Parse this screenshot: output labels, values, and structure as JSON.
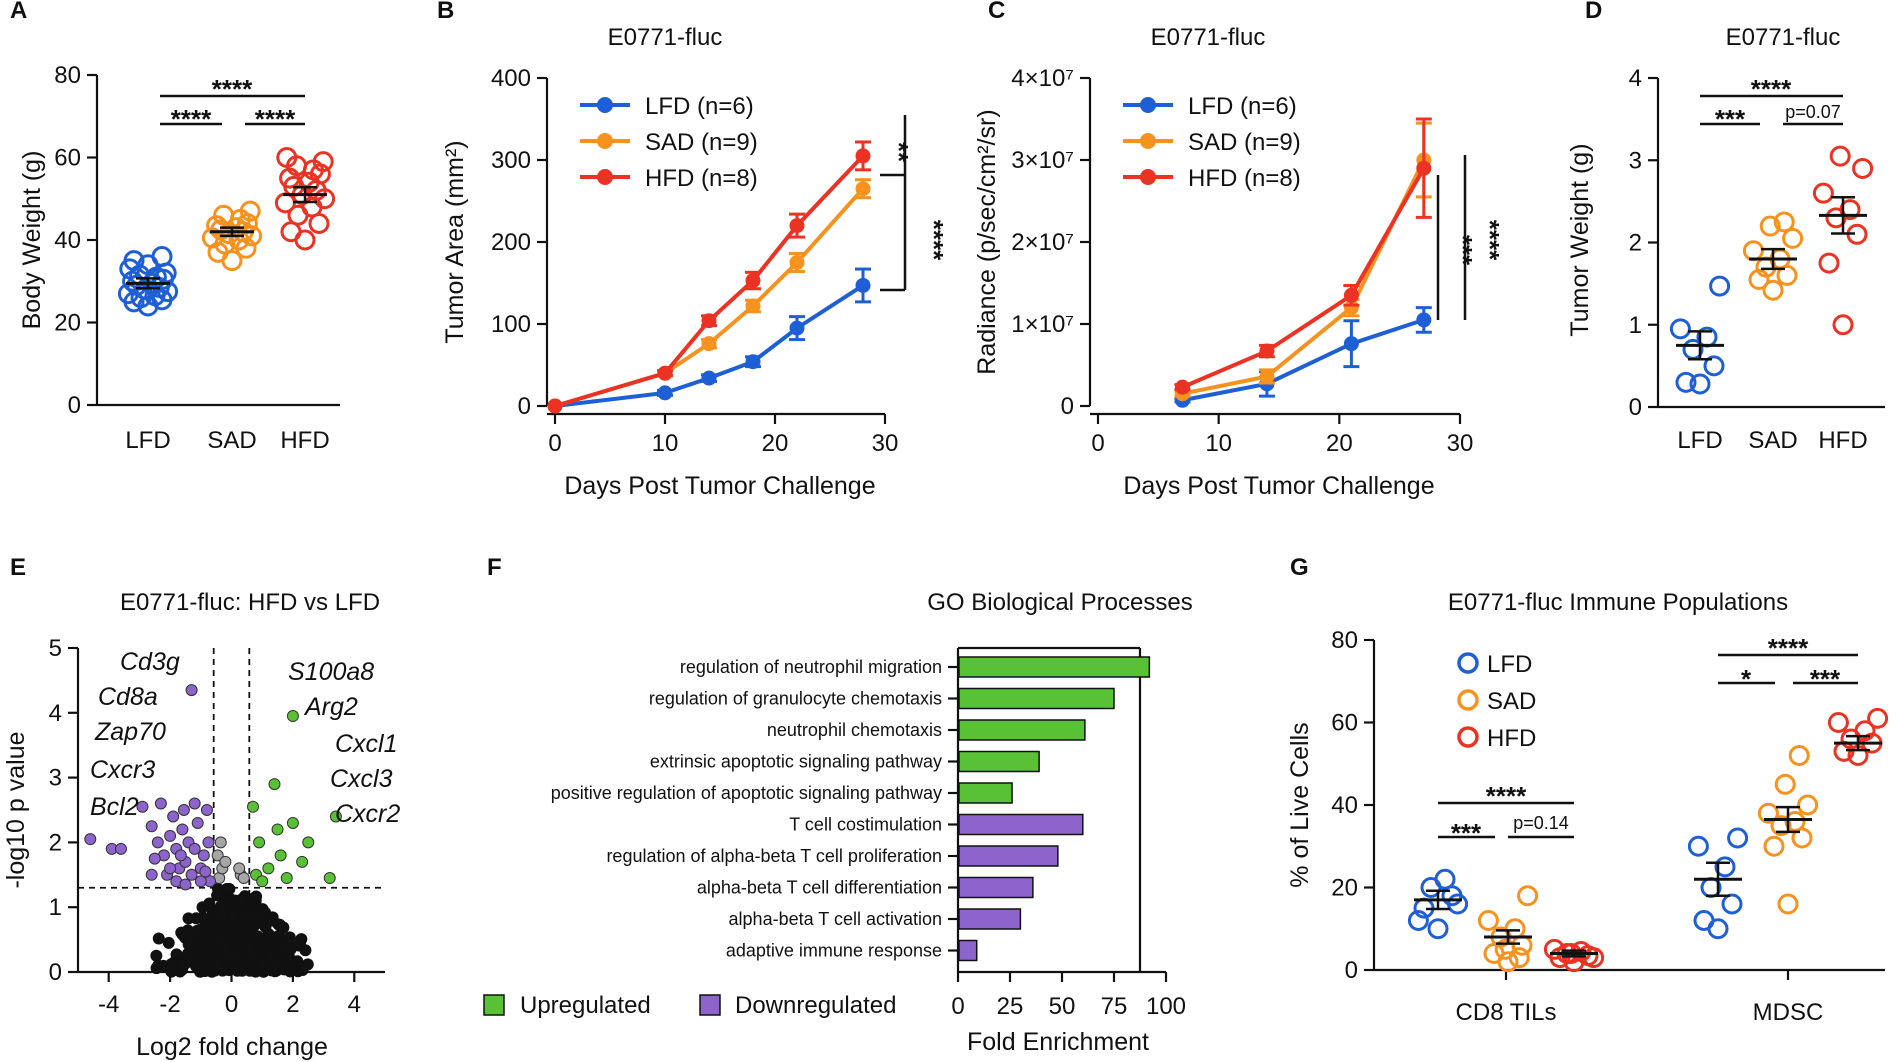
{
  "colors": {
    "LFD": "#1f5fd6",
    "SAD": "#f8921e",
    "HFD": "#ec3323",
    "up": "#58c234",
    "down": "#8d63cc",
    "ns": "#a6a6a6",
    "black": "#111111"
  },
  "chart_data": [
    {
      "panel": "A",
      "type": "scatter",
      "title": "",
      "xlabel": "",
      "ylabel": "Body Weight (g)",
      "categories": [
        "LFD",
        "SAD",
        "HFD"
      ],
      "ylim": [
        0,
        80
      ],
      "yticks": [
        "0",
        "20",
        "40",
        "60",
        "80"
      ],
      "means": [
        29.5,
        42,
        51
      ],
      "sem": [
        1.2,
        1.0,
        1.8
      ],
      "points": [
        [
          24,
          25,
          25.5,
          26,
          26.5,
          27,
          27.5,
          28,
          28.5,
          29,
          29.5,
          30,
          30.5,
          31,
          31.5,
          32,
          33,
          34,
          35,
          36
        ],
        [
          35,
          37,
          38,
          39,
          40,
          40.5,
          41,
          41.5,
          42,
          42.5,
          43,
          43.5,
          44,
          45,
          46,
          47
        ],
        [
          40,
          42,
          44,
          46,
          48,
          49,
          50,
          51,
          52,
          53,
          54,
          55,
          56,
          57,
          58,
          59,
          60
        ]
      ],
      "significance": [
        {
          "from": "LFD",
          "to": "SAD",
          "label": "****"
        },
        {
          "from": "SAD",
          "to": "HFD",
          "label": "****"
        },
        {
          "from": "LFD",
          "to": "HFD",
          "label": "****"
        }
      ]
    },
    {
      "panel": "B",
      "type": "line",
      "title": "E0771-fluc",
      "xlabel": "Days Post Tumor Challenge",
      "ylabel": "Tumor Area (mm²)",
      "xlim": [
        0,
        30
      ],
      "ylim": [
        0,
        400
      ],
      "xticks": [
        "0",
        "10",
        "20",
        "30"
      ],
      "yticks": [
        "0",
        "100",
        "200",
        "300",
        "400"
      ],
      "series": [
        {
          "name": "LFD (n=6)",
          "x": [
            0,
            10,
            14,
            18,
            22,
            28
          ],
          "y": [
            0,
            16,
            34,
            54,
            95,
            147
          ],
          "err": [
            0,
            3,
            4,
            6,
            14,
            20
          ]
        },
        {
          "name": "SAD (n=9)",
          "x": [
            0,
            10,
            14,
            18,
            22,
            28
          ],
          "y": [
            0,
            40,
            76,
            122,
            175,
            265
          ],
          "err": [
            0,
            3,
            5,
            7,
            11,
            11
          ]
        },
        {
          "name": "HFD (n=8)",
          "x": [
            0,
            10,
            14,
            18,
            22,
            28
          ],
          "y": [
            0,
            40,
            104,
            153,
            220,
            305
          ],
          "err": [
            0,
            3,
            6,
            10,
            14,
            17
          ]
        }
      ],
      "significance": [
        {
          "label": "**"
        },
        {
          "label": "****"
        }
      ]
    },
    {
      "panel": "C",
      "type": "line",
      "title": "E0771-fluc",
      "xlabel": "Days Post Tumor Challenge",
      "ylabel": "Radiance (p/sec/cm²/sr)",
      "xlim": [
        0,
        30
      ],
      "ylim": [
        0,
        40000000
      ],
      "xticks": [
        "0",
        "10",
        "20",
        "30"
      ],
      "yticks": [
        "0",
        "1×10⁷",
        "2×10⁷",
        "3×10⁷",
        "4×10⁷"
      ],
      "series": [
        {
          "name": "LFD (n=6)",
          "x": [
            7,
            14,
            21,
            27
          ],
          "y": [
            700000,
            2700000,
            7600000,
            10500000
          ],
          "err": [
            200000,
            1500000,
            2800000,
            1500000
          ]
        },
        {
          "name": "SAD (n=9)",
          "x": [
            7,
            14,
            21,
            27
          ],
          "y": [
            1500000,
            3600000,
            12000000,
            30000000
          ],
          "err": [
            300000,
            800000,
            1000000,
            4500000
          ]
        },
        {
          "name": "HFD (n=8)",
          "x": [
            7,
            14,
            21,
            27
          ],
          "y": [
            2300000,
            6700000,
            13500000,
            29000000
          ],
          "err": [
            300000,
            700000,
            1200000,
            6000000
          ]
        }
      ],
      "significance": [
        {
          "label": "***"
        },
        {
          "label": "****"
        }
      ]
    },
    {
      "panel": "D",
      "type": "scatter",
      "title": "E0771-fluc",
      "xlabel": "",
      "ylabel": "Tumor Weight (g)",
      "categories": [
        "LFD",
        "SAD",
        "HFD"
      ],
      "ylim": [
        0,
        4
      ],
      "yticks": [
        "0",
        "1",
        "2",
        "3",
        "4"
      ],
      "means": [
        0.75,
        1.8,
        2.33
      ],
      "sem": [
        0.17,
        0.12,
        0.22
      ],
      "points": [
        [
          0.28,
          0.3,
          0.5,
          0.7,
          0.85,
          0.95,
          1.47
        ],
        [
          1.42,
          1.55,
          1.6,
          1.7,
          1.8,
          1.9,
          2.05,
          2.2,
          2.25
        ],
        [
          1.0,
          1.75,
          2.1,
          2.3,
          2.4,
          2.6,
          2.9,
          3.05
        ]
      ],
      "significance": [
        {
          "from": "LFD",
          "to": "SAD",
          "label": "***"
        },
        {
          "from": "SAD",
          "to": "HFD",
          "label": "p=0.07"
        },
        {
          "from": "LFD",
          "to": "HFD",
          "label": "****"
        }
      ]
    },
    {
      "panel": "E",
      "type": "scatter",
      "title": "E0771-fluc: HFD vs LFD",
      "xlabel": "Log2 fold change",
      "ylabel": "-log10 p value",
      "xlim": [
        -5,
        5
      ],
      "ylim": [
        0,
        5
      ],
      "xticks": [
        "-4",
        "-2",
        "0",
        "2",
        "4"
      ],
      "yticks": [
        "0",
        "1",
        "2",
        "3",
        "4",
        "5"
      ],
      "threshold_y": 1.3,
      "threshold_x": [
        -0.58,
        0.58
      ],
      "gene_labels_down": [
        "Cd3g",
        "Cd8a",
        "Zap70",
        "Cxcr3",
        "Bcl2"
      ],
      "gene_labels_up": [
        "S100a8",
        "Arg2",
        "Cxcl1",
        "Cxcl3",
        "Cxcr2"
      ]
    },
    {
      "panel": "F",
      "type": "bar",
      "title": "GO Biological Processes",
      "xlabel": "Fold Enrichment",
      "xlim": [
        0,
        100
      ],
      "xticks": [
        "0",
        "25",
        "50",
        "75",
        "100"
      ],
      "categories": [
        "regulation of neutrophil migration",
        "regulation of granulocyte chemotaxis",
        "neutrophil chemotaxis",
        "extrinsic apoptotic signaling pathway",
        "positive regulation of apoptotic signaling pathway",
        "T cell costimulation",
        "regulation of alpha-beta T cell proliferation",
        "alpha-beta T cell differentiation",
        "alpha-beta T cell activation",
        "adaptive immune response"
      ],
      "values": [
        92,
        75,
        61,
        39,
        26,
        60,
        48,
        36,
        30,
        9
      ],
      "direction": [
        "up",
        "up",
        "up",
        "up",
        "up",
        "down",
        "down",
        "down",
        "down",
        "down"
      ],
      "legend": [
        "Upregulated",
        "Downregulated"
      ]
    },
    {
      "panel": "G",
      "type": "scatter",
      "title": "E0771-fluc Immune Populations",
      "xlabel": "",
      "ylabel": "% of Live Cells",
      "ylim": [
        0,
        80
      ],
      "yticks": [
        "0",
        "20",
        "40",
        "60",
        "80"
      ],
      "groups": [
        "CD8 TILs",
        "MDSC"
      ],
      "series_names": [
        "LFD",
        "SAD",
        "HFD"
      ],
      "means": [
        [
          17,
          8,
          4
        ],
        [
          22,
          36.5,
          55
        ]
      ],
      "sem": [
        [
          2.2,
          1.6,
          0.7
        ],
        [
          4,
          3,
          1.7
        ]
      ],
      "points": [
        [
          [
            10,
            15,
            18,
            20,
            22,
            12,
            16
          ],
          [
            2,
            4,
            6,
            8,
            10,
            12,
            18,
            5,
            3
          ],
          [
            2,
            3,
            3.5,
            4,
            4.5,
            5,
            3,
            4
          ]
        ],
        [
          [
            10,
            12,
            16,
            20,
            25,
            30,
            32
          ],
          [
            16,
            30,
            32,
            35,
            36,
            38,
            40,
            45,
            52
          ],
          [
            52,
            53,
            55,
            56,
            58,
            60,
            61
          ]
        ]
      ],
      "significance": [
        {
          "group": "CD8 TILs",
          "labels": [
            "***",
            "p=0.14",
            "****"
          ]
        },
        {
          "group": "MDSC",
          "labels": [
            "*",
            "***",
            "****"
          ]
        }
      ],
      "legend": [
        "LFD",
        "SAD",
        "HFD"
      ]
    }
  ],
  "panel_letters": [
    "A",
    "B",
    "C",
    "D",
    "E",
    "F",
    "G"
  ],
  "legend_B": [
    "LFD (n=6)",
    "SAD (n=9)",
    "HFD (n=8)"
  ]
}
